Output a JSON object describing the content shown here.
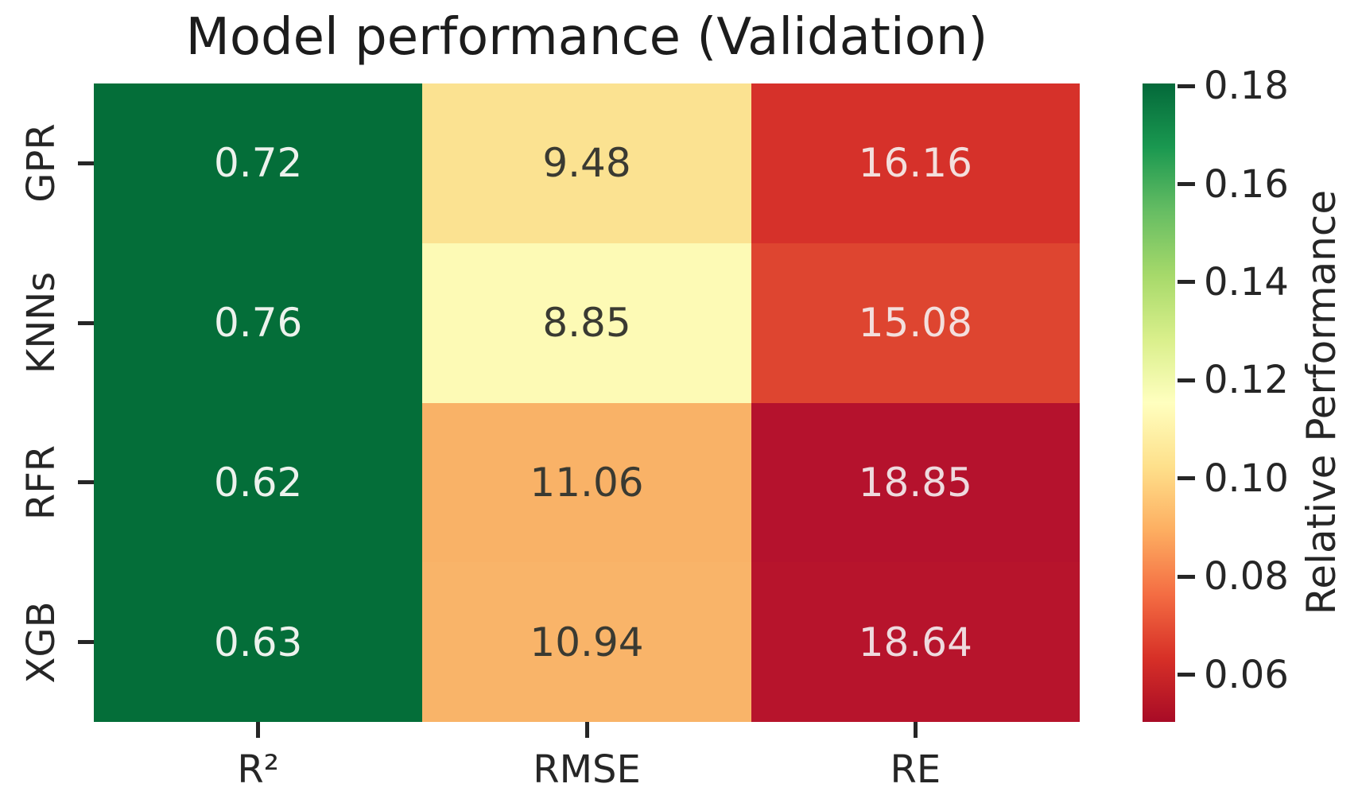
{
  "figure": {
    "background": "#ffffff",
    "text_color": "#262626"
  },
  "chart_data": {
    "type": "heatmap",
    "title": "Model performance (Validation)",
    "rows": [
      "GPR",
      "KNNs",
      "RFR",
      "XGB"
    ],
    "columns": [
      "R²",
      "RMSE",
      "RE"
    ],
    "values": [
      [
        0.72,
        9.48,
        16.16
      ],
      [
        0.76,
        8.85,
        15.08
      ],
      [
        0.62,
        11.06,
        18.85
      ],
      [
        0.63,
        10.94,
        18.64
      ]
    ],
    "cell_labels": [
      [
        "0.72",
        "9.48",
        "16.16"
      ],
      [
        "0.76",
        "8.85",
        "15.08"
      ],
      [
        "0.62",
        "11.06",
        "18.85"
      ],
      [
        "0.63",
        "10.94",
        "18.64"
      ]
    ],
    "cell_colors": [
      [
        "#046e39",
        "#fbe291",
        "#d6312a"
      ],
      [
        "#046e39",
        "#fdfab5",
        "#de4530"
      ],
      [
        "#046e39",
        "#f9b267",
        "#b5122d"
      ],
      [
        "#046e39",
        "#f9b469",
        "#b7142c"
      ]
    ],
    "cell_text_colors": [
      [
        "#edf2ed",
        "#3a3a32",
        "#f3dfdd"
      ],
      [
        "#edf2ed",
        "#3a3a32",
        "#f3dfdd"
      ],
      [
        "#edf2ed",
        "#3a3a32",
        "#eedade"
      ],
      [
        "#edf2ed",
        "#3a3a32",
        "#eedade"
      ]
    ],
    "grid_on": false,
    "legend_position": "right-colorbar",
    "colorbar": {
      "label": "Relative Performance",
      "tick_labels": [
        "0.06",
        "0.08",
        "0.10",
        "0.12",
        "0.14",
        "0.16",
        "0.18"
      ],
      "tick_values": [
        0.06,
        0.08,
        0.1,
        0.12,
        0.14,
        0.16,
        0.18
      ],
      "vmin": 0.0504,
      "vmax": 0.1805,
      "gradient_stops": [
        "#a80b26",
        "#d73027",
        "#f46d43",
        "#fdae61",
        "#fee08b",
        "#ffffbf",
        "#d9ef8b",
        "#a6d96a",
        "#66bd63",
        "#1a9850",
        "#04693a"
      ]
    }
  }
}
